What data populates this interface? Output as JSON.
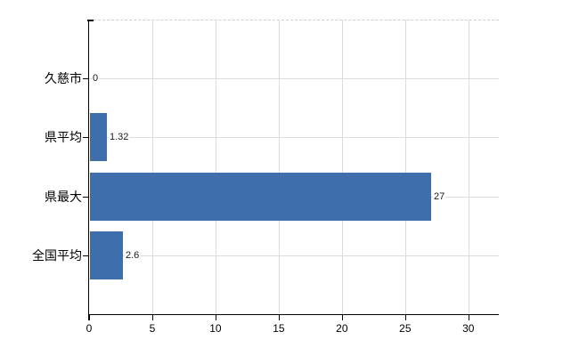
{
  "chart_data": {
    "type": "bar",
    "orientation": "horizontal",
    "title": "",
    "categories": [
      "久慈市",
      "県平均",
      "県最大",
      "全国平均"
    ],
    "values": [
      0,
      1.32,
      27,
      2.6
    ],
    "value_labels": [
      "0",
      "1.32",
      "27",
      "2.6"
    ],
    "x_ticks": [
      "0",
      "5",
      "10",
      "15",
      "20",
      "25",
      "30"
    ],
    "x_tick_values": [
      0,
      5,
      10,
      15,
      20,
      25,
      30
    ],
    "xlim": [
      0,
      32.4
    ],
    "grid": true,
    "legend": false,
    "bar_color": "#3f6eac",
    "axis_color": "#000000",
    "grid_color_vertical": "#dcdcdc",
    "grid_color_horizontal": "#d9ded6",
    "plot_border_top_style": "dashed",
    "background_color": "#ffffff"
  }
}
